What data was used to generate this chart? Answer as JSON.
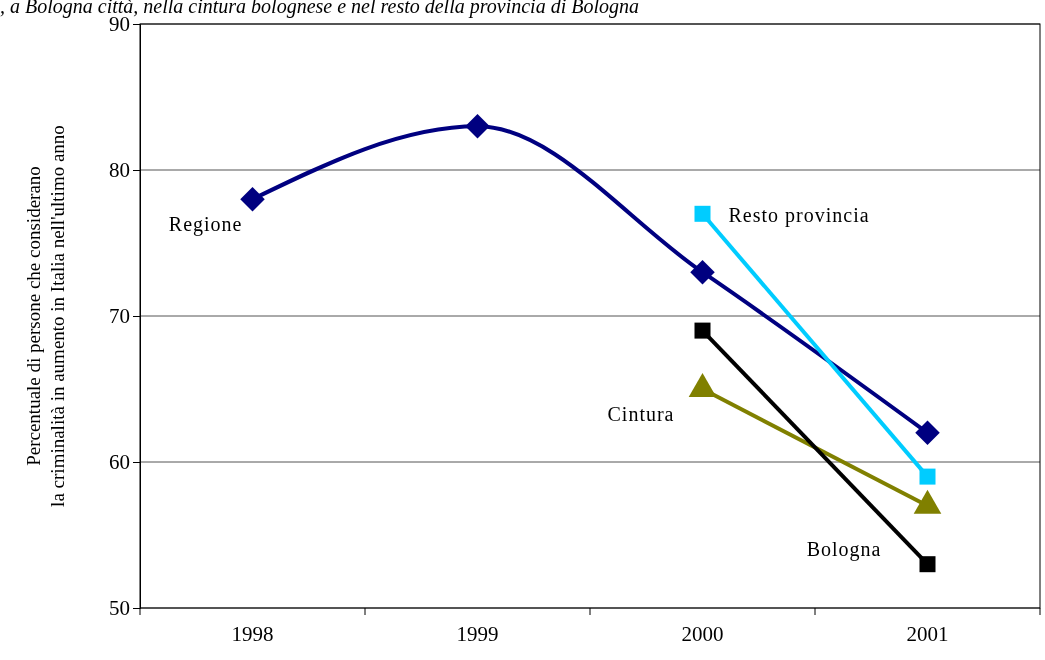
{
  "chart_data": {
    "type": "line",
    "title": ", a Bologna città, nella cintura bolognese e nel resto della provincia di Bologna",
    "ylabel": "Percentuale di persone che considerano\nla criminalità in aumento in Italia nell'ultimo anno",
    "categories": [
      "1998",
      "1999",
      "2000",
      "2001"
    ],
    "series": [
      {
        "name": "Regione",
        "color": "#000080",
        "marker": "diamond",
        "values": [
          78,
          83,
          73,
          62
        ]
      },
      {
        "name": "Resto provincia",
        "color": "#00ccff",
        "marker": "square",
        "values": [
          null,
          null,
          77,
          59
        ]
      },
      {
        "name": "Cintura",
        "color": "#808000",
        "marker": "triangle",
        "values": [
          null,
          null,
          65,
          57
        ]
      },
      {
        "name": "Bologna",
        "color": "#000000",
        "marker": "square",
        "values": [
          null,
          null,
          69,
          53
        ]
      }
    ],
    "ylim": [
      50,
      90
    ],
    "yticks": [
      50,
      60,
      70,
      80,
      90
    ],
    "grid": "y"
  }
}
